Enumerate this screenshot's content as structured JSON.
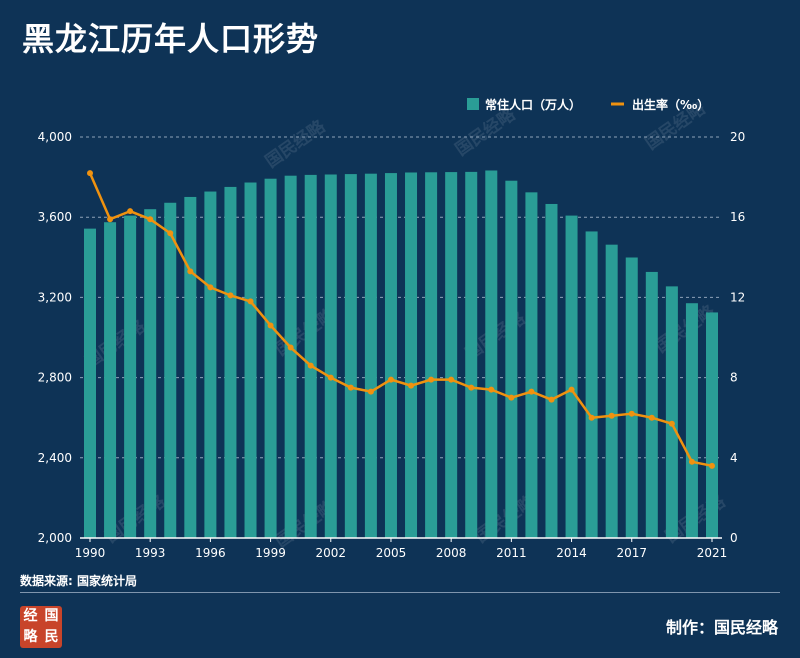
{
  "header": {
    "title": "黑龙江历年人口形势"
  },
  "footer": {
    "source": "数据来源: 国家统计局",
    "credit": "制作：国民经略",
    "logo_chars": [
      "经",
      "国",
      "略",
      "民"
    ]
  },
  "watermark": "国民经略",
  "colors": {
    "background": "#0e3356",
    "bar": "#2a9d96",
    "line": "#f0920f",
    "grid": "#8fa3b8"
  },
  "chart_data": {
    "type": "bar+line",
    "title": "黑龙江历年人口形势",
    "x": [
      1990,
      1991,
      1992,
      1993,
      1994,
      1995,
      1996,
      1997,
      1998,
      1999,
      2000,
      2001,
      2002,
      2003,
      2004,
      2005,
      2006,
      2007,
      2008,
      2009,
      2010,
      2011,
      2012,
      2013,
      2014,
      2015,
      2016,
      2017,
      2018,
      2019,
      2020,
      2021
    ],
    "x_tick_labels": [
      "1990",
      "1993",
      "1996",
      "1999",
      "2002",
      "2005",
      "2008",
      "2011",
      "2014",
      "2017",
      "2021"
    ],
    "series": [
      {
        "name": "常住人口（万人）",
        "type": "bar",
        "axis": "left",
        "values": [
          3543,
          3575,
          3608,
          3640,
          3672,
          3701,
          3728,
          3751,
          3773,
          3792,
          3807,
          3811,
          3813,
          3815,
          3817,
          3820,
          3823,
          3824,
          3825,
          3826,
          3833,
          3782,
          3724,
          3666,
          3608,
          3529,
          3463,
          3399,
          3327,
          3255,
          3171,
          3125
        ]
      },
      {
        "name": "出生率（‰）",
        "type": "line",
        "axis": "right",
        "values": [
          18.2,
          15.9,
          16.3,
          15.9,
          15.2,
          13.3,
          12.5,
          12.1,
          11.8,
          10.6,
          9.5,
          8.6,
          8.0,
          7.5,
          7.3,
          7.9,
          7.6,
          7.9,
          7.9,
          7.5,
          7.4,
          7.0,
          7.3,
          6.9,
          7.4,
          6.0,
          6.1,
          6.2,
          6.0,
          5.7,
          3.8,
          3.6
        ]
      }
    ],
    "y_left": {
      "range": [
        2000,
        4000
      ],
      "ticks": [
        "2,000",
        "2,400",
        "2,800",
        "3,200",
        "3,600",
        "4,000"
      ]
    },
    "y_right": {
      "range": [
        0,
        20
      ],
      "ticks": [
        "0",
        "4",
        "8",
        "12",
        "16",
        "20"
      ]
    },
    "legend": {
      "position": "top-right",
      "items": [
        "常住人口（万人）",
        "出生率（‰）"
      ]
    },
    "grid": true
  }
}
